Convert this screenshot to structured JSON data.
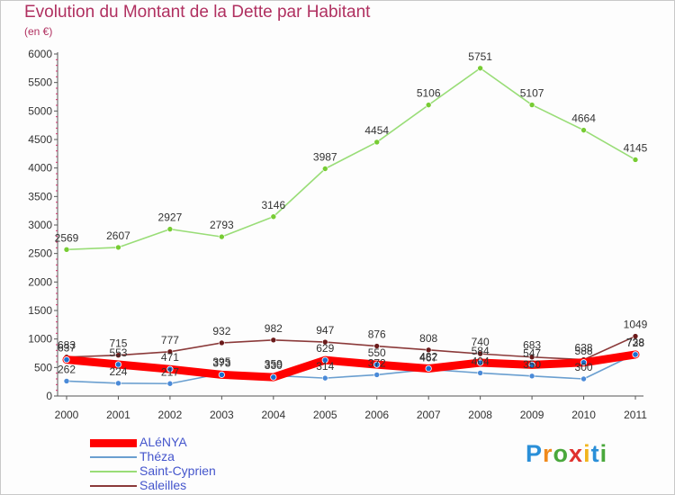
{
  "header": {
    "title": "Evolution du Montant de la Dette par Habitant",
    "subtitle": "(en €)"
  },
  "chart_data": {
    "type": "line",
    "title": "Evolution du Montant de la Dette par Habitant",
    "ylabel": "(en €)",
    "xlabel": "",
    "categories": [
      "2000",
      "2001",
      "2002",
      "2003",
      "2004",
      "2005",
      "2006",
      "2007",
      "2008",
      "2009",
      "2010",
      "2011"
    ],
    "ylim": [
      0,
      6000
    ],
    "yticks": [
      0,
      500,
      1000,
      1500,
      2000,
      2500,
      3000,
      3500,
      4000,
      4500,
      5000,
      5500,
      6000
    ],
    "grid": false,
    "legend_position": "bottom-left",
    "series": [
      {
        "name": "ALéNYA",
        "color": "#ff0000",
        "marker_color": "#1a6fd0",
        "values": [
          637,
          553,
          471,
          373,
          330,
          629,
          550,
          482,
          584,
          547,
          588,
          728
        ]
      },
      {
        "name": "Théza",
        "color": "#6a9fd0",
        "marker_color": "#4a8ad8",
        "values": [
          262,
          224,
          217,
          395,
          359,
          314,
          372,
          467,
          404,
          350,
          300,
          738
        ]
      },
      {
        "name": "Saint-Cyprien",
        "color": "#99dd77",
        "marker_color": "#77cc33",
        "values": [
          2569,
          2607,
          2927,
          2793,
          3146,
          3987,
          4454,
          5106,
          5751,
          5107,
          4664,
          4145
        ]
      },
      {
        "name": "Saleilles",
        "color": "#8b3a3a",
        "marker_color": "#6b1a1a",
        "values": [
          683,
          715,
          777,
          932,
          982,
          947,
          876,
          808,
          740,
          683,
          638,
          1049
        ]
      }
    ],
    "labels": {
      "ALéNYA": [
        "637",
        "553",
        "471",
        "373",
        "330",
        "629",
        "550",
        "482",
        "584",
        "547",
        "588",
        "728"
      ],
      "Théza": [
        "262",
        "224",
        "217",
        "395",
        "359",
        "314",
        "372",
        "467",
        "404",
        "350",
        "300",
        "738"
      ],
      "Saint-Cyprien": [
        "2569",
        "2607",
        "2927",
        "2793",
        "3146",
        "3987",
        "4454",
        "5106",
        "5751",
        "5107",
        "4664",
        "4145"
      ],
      "Saleilles": [
        "683",
        "715",
        "777",
        "932",
        "982",
        "947",
        "876",
        "808",
        "740",
        "683",
        "638",
        "1049"
      ]
    }
  },
  "legend": {
    "items": [
      {
        "label": "ALéNYA",
        "color": "#ff0000"
      },
      {
        "label": "Théza",
        "color": "#6a9fd0"
      },
      {
        "label": "Saint-Cyprien",
        "color": "#99dd77"
      },
      {
        "label": "Saleilles",
        "color": "#8b3a3a"
      }
    ]
  },
  "brand": {
    "letters": [
      "P",
      "r",
      "o",
      "x",
      "i",
      "t",
      "i"
    ],
    "colors": [
      "#2a8fd8",
      "#f08a1c",
      "#4aa83c",
      "#e0322e",
      "#f2b51c",
      "#2a8fd8",
      "#4aa83c"
    ]
  }
}
